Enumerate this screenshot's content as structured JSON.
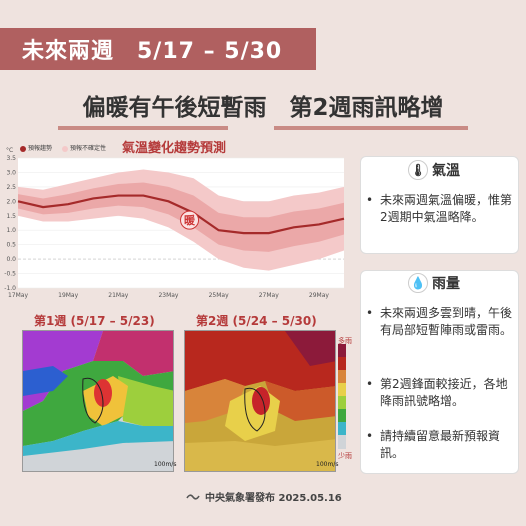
{
  "header": {
    "title": "未來兩週　5/17 – 5/30"
  },
  "subtitle": "偏暖有午後短暫雨　第2週雨訊略增",
  "chart": {
    "title": "氣溫變化趨勢預測",
    "unit": "°C",
    "legend": [
      "預報趨勢",
      "預報不確定性"
    ],
    "badge": "暖",
    "colors": {
      "trend": "#a52a2a",
      "uncertainty_outer": "#f4c9c9",
      "uncertainty_inner": "#e79a9a"
    }
  },
  "chart_data": {
    "type": "line",
    "title": "氣溫變化趨勢預測",
    "ylabel": "°C",
    "ylim": [
      -1.0,
      3.5
    ],
    "yticks": [
      "3.5",
      "3.0",
      "2.5",
      "2.0",
      "1.5",
      "1.0",
      "0.5",
      "0.0",
      "-0.5",
      "-1.0"
    ],
    "xticks": [
      "17May",
      "19May",
      "21May",
      "23May",
      "25May",
      "27May",
      "29May"
    ],
    "x": [
      "17May",
      "18May",
      "19May",
      "20May",
      "21May",
      "22May",
      "23May",
      "24May",
      "25May",
      "26May",
      "27May",
      "28May",
      "29May",
      "30May"
    ],
    "series": [
      {
        "name": "預報趨勢",
        "values": [
          2.0,
          1.8,
          1.9,
          2.1,
          2.2,
          2.2,
          2.0,
          1.6,
          1.0,
          0.9,
          0.9,
          1.1,
          1.2,
          1.4
        ]
      },
      {
        "name": "預報不確定性 上界",
        "values": [
          2.5,
          2.4,
          2.6,
          2.8,
          3.0,
          3.1,
          3.0,
          2.8,
          2.2,
          2.0,
          2.0,
          2.2,
          2.3,
          2.5
        ]
      },
      {
        "name": "預報不確定性 下界",
        "values": [
          1.5,
          1.3,
          1.3,
          1.4,
          1.5,
          1.4,
          1.1,
          0.6,
          0.0,
          -0.3,
          -0.4,
          -0.2,
          0.0,
          0.3
        ]
      }
    ]
  },
  "temp_card": {
    "title": "氣溫",
    "icon": "thermometer-icon",
    "bullets": [
      "未來兩週氣溫偏暖，惟第2週期中氣溫略降。"
    ]
  },
  "rain_card": {
    "title": "雨量",
    "icon": "raindrop-icon",
    "bullets": [
      "未來兩週多雲到晴，午後有局部短暫陣雨或雷雨。",
      "第2週鋒面較接近，各地降雨訊號略增。",
      "請持續留意最新預報資訊。"
    ]
  },
  "maps": {
    "week1": {
      "label": "第1週 (5/17 – 5/23)",
      "scale": "100m/s"
    },
    "week2": {
      "label": "第2週 (5/24 – 5/30)",
      "scale": "100m/s"
    },
    "scale_more": "多雨",
    "scale_less": "少雨"
  },
  "footer": {
    "text": "中央氣象署發布  2025.05.16"
  }
}
